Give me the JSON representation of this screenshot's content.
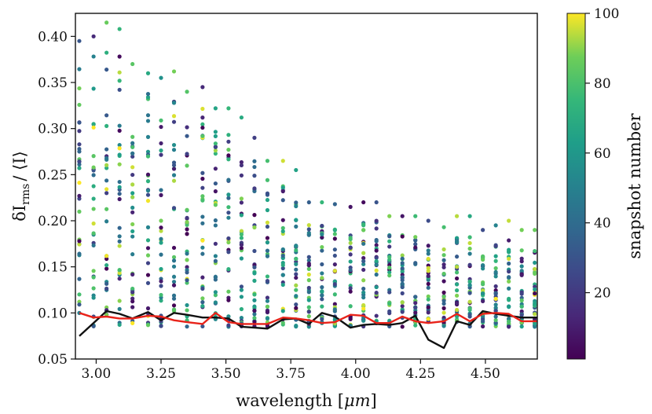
{
  "chart_data": {
    "type": "scatter",
    "title": "",
    "xlabel_prefix": "wavelength [",
    "xlabel_symbol": "μm",
    "xlabel_suffix": "]",
    "ylabel_delta": "δI",
    "ylabel_sub": "rms",
    "ylabel_tail": "/ ⟨I⟩",
    "colorbar_label": "snapshot number",
    "xlim": [
      2.92,
      4.7
    ],
    "ylim": [
      0.05,
      0.425
    ],
    "xticks": [
      3.0,
      3.25,
      3.5,
      3.75,
      4.0,
      4.25,
      4.5
    ],
    "xtick_labels": [
      "3.00",
      "3.25",
      "3.50",
      "3.75",
      "4.00",
      "4.25",
      "4.50"
    ],
    "yticks": [
      0.05,
      0.1,
      0.15,
      0.2,
      0.25,
      0.3,
      0.35,
      0.4
    ],
    "ytick_labels": [
      "0.05",
      "0.10",
      "0.15",
      "0.20",
      "0.25",
      "0.30",
      "0.35",
      "0.40"
    ],
    "colorbar": {
      "range": [
        1,
        100
      ],
      "ticks": [
        20,
        40,
        60,
        80,
        100
      ],
      "tick_labels": [
        "20",
        "40",
        "60",
        "80",
        "100"
      ],
      "colormap": "viridis"
    },
    "scatter_columns": [
      {
        "x": 2.935,
        "ymax": 0.395
      },
      {
        "x": 2.99,
        "ymax": 0.4
      },
      {
        "x": 3.04,
        "ymax": 0.415
      },
      {
        "x": 3.09,
        "ymax": 0.408
      },
      {
        "x": 3.14,
        "ymax": 0.37
      },
      {
        "x": 3.2,
        "ymax": 0.36
      },
      {
        "x": 3.25,
        "ymax": 0.355
      },
      {
        "x": 3.3,
        "ymax": 0.362
      },
      {
        "x": 3.35,
        "ymax": 0.34
      },
      {
        "x": 3.41,
        "ymax": 0.345
      },
      {
        "x": 3.46,
        "ymax": 0.322
      },
      {
        "x": 3.51,
        "ymax": 0.322
      },
      {
        "x": 3.56,
        "ymax": 0.312
      },
      {
        "x": 3.61,
        "ymax": 0.29
      },
      {
        "x": 3.66,
        "ymax": 0.265
      },
      {
        "x": 3.72,
        "ymax": 0.265
      },
      {
        "x": 3.77,
        "ymax": 0.255
      },
      {
        "x": 3.82,
        "ymax": 0.22
      },
      {
        "x": 3.87,
        "ymax": 0.22
      },
      {
        "x": 3.92,
        "ymax": 0.218
      },
      {
        "x": 3.98,
        "ymax": 0.215
      },
      {
        "x": 4.03,
        "ymax": 0.22
      },
      {
        "x": 4.08,
        "ymax": 0.22
      },
      {
        "x": 4.13,
        "ymax": 0.205
      },
      {
        "x": 4.18,
        "ymax": 0.205
      },
      {
        "x": 4.23,
        "ymax": 0.205
      },
      {
        "x": 4.28,
        "ymax": 0.2
      },
      {
        "x": 4.34,
        "ymax": 0.193
      },
      {
        "x": 4.39,
        "ymax": 0.205
      },
      {
        "x": 4.44,
        "ymax": 0.205
      },
      {
        "x": 4.49,
        "ymax": 0.19
      },
      {
        "x": 4.54,
        "ymax": 0.195
      },
      {
        "x": 4.59,
        "ymax": 0.2
      },
      {
        "x": 4.64,
        "ymax": 0.19
      },
      {
        "x": 4.69,
        "ymax": 0.19
      }
    ],
    "series": [
      {
        "name": "black line",
        "color": "#111111",
        "x": [
          2.935,
          3.04,
          3.09,
          3.14,
          3.2,
          3.25,
          3.3,
          3.35,
          3.41,
          3.46,
          3.51,
          3.56,
          3.61,
          3.66,
          3.72,
          3.77,
          3.82,
          3.87,
          3.92,
          3.98,
          4.03,
          4.08,
          4.13,
          4.18,
          4.23,
          4.28,
          4.34,
          4.39,
          4.44,
          4.49,
          4.54,
          4.59,
          4.64,
          4.7
        ],
        "y": [
          0.075,
          0.102,
          0.099,
          0.094,
          0.101,
          0.092,
          0.1,
          0.098,
          0.095,
          0.095,
          0.094,
          0.085,
          0.084,
          0.083,
          0.093,
          0.094,
          0.088,
          0.1,
          0.096,
          0.084,
          0.087,
          0.088,
          0.087,
          0.089,
          0.097,
          0.071,
          0.062,
          0.091,
          0.087,
          0.102,
          0.099,
          0.097,
          0.095,
          0.095
        ]
      },
      {
        "name": "red line",
        "color": "#e8231a",
        "x": [
          2.935,
          2.99,
          3.04,
          3.09,
          3.14,
          3.2,
          3.25,
          3.3,
          3.35,
          3.41,
          3.46,
          3.51,
          3.56,
          3.61,
          3.66,
          3.72,
          3.77,
          3.82,
          3.87,
          3.92,
          3.98,
          4.03,
          4.08,
          4.13,
          4.18,
          4.23,
          4.28,
          4.34,
          4.39,
          4.44,
          4.49,
          4.54,
          4.59,
          4.64,
          4.7
        ],
        "y": [
          0.1,
          0.095,
          0.096,
          0.094,
          0.094,
          0.097,
          0.096,
          0.092,
          0.09,
          0.088,
          0.1,
          0.09,
          0.088,
          0.088,
          0.088,
          0.095,
          0.094,
          0.092,
          0.089,
          0.09,
          0.098,
          0.097,
          0.089,
          0.089,
          0.096,
          0.091,
          0.089,
          0.091,
          0.099,
          0.091,
          0.099,
          0.1,
          0.099,
          0.091,
          0.091
        ]
      }
    ]
  }
}
